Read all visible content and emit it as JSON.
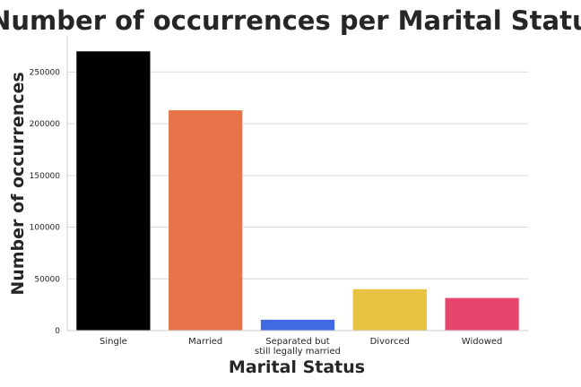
{
  "chart_data": {
    "type": "bar",
    "title": "Number of occurrences per Marital Status",
    "xlabel": "Marital Status",
    "ylabel": "Number of occurrences",
    "categories": [
      [
        "Single"
      ],
      [
        "Married"
      ],
      [
        "Separated but",
        "still legally married"
      ],
      [
        "Divorced"
      ],
      [
        "Widowed"
      ]
    ],
    "values": [
      270000,
      213000,
      10500,
      40000,
      31500
    ],
    "colors": [
      "#000000",
      "#E67448",
      "#4169E1",
      "#E8C341",
      "#E8456D"
    ],
    "ylim": [
      0,
      285000
    ],
    "yticks": [
      0,
      50000,
      100000,
      150000,
      200000,
      250000
    ],
    "grid": true
  }
}
